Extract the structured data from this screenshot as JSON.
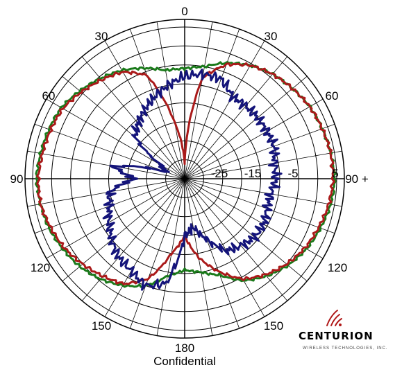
{
  "chart_data": {
    "type": "polar",
    "r_unit": "dB",
    "ring_labels": [
      "-25",
      "-15",
      "-5",
      "5"
    ],
    "angle_labels": {
      "top": "0",
      "upper_left": "30",
      "upper_right": "30",
      "mid_upper_left": "60",
      "mid_upper_right": "60",
      "left": "90",
      "right": "90 +",
      "lower_left_120": "120",
      "lower_right_120": "120",
      "lower_left_150": "150",
      "lower_right_150": "150",
      "bottom": "180"
    },
    "r_range_db": [
      -35,
      7
    ],
    "series": [
      {
        "color": "#1a7a1a",
        "theta_deg": [
          0,
          10,
          20,
          30,
          40,
          50,
          60,
          70,
          80,
          90,
          100,
          110,
          120,
          130,
          140,
          150,
          160,
          170,
          180,
          190,
          200,
          210,
          220,
          230,
          240,
          250,
          260,
          270,
          280,
          290,
          300,
          310,
          320,
          330,
          340,
          350
        ],
        "r_db": [
          -6,
          -5,
          -2.5,
          -0.5,
          1,
          2,
          3,
          3.5,
          4,
          4.5,
          4,
          3,
          2,
          0.5,
          -1.5,
          -4,
          -8,
          -10,
          -11,
          -9,
          -5,
          -2.5,
          -0.5,
          1,
          2,
          3,
          3.5,
          4,
          3.5,
          3,
          2.5,
          1,
          -0.5,
          -2,
          -4,
          -6
        ]
      },
      {
        "color": "#aa1a1a",
        "theta_deg": [
          0,
          10,
          20,
          30,
          40,
          50,
          60,
          70,
          80,
          90,
          100,
          110,
          120,
          130,
          140,
          150,
          160,
          170,
          180,
          190,
          200,
          210,
          220,
          230,
          240,
          250,
          260,
          270,
          280,
          290,
          300,
          310,
          320,
          330,
          340,
          350
        ],
        "r_db": [
          -31,
          -8,
          -3,
          -0.5,
          1,
          2,
          3,
          3.5,
          4,
          4,
          3.5,
          2.5,
          1.5,
          0,
          -2,
          -4.5,
          -9,
          -14,
          -20,
          -15,
          -7,
          -3,
          -1.5,
          0,
          1.5,
          2.5,
          3.5,
          3.5,
          3,
          2.5,
          2,
          0.5,
          -1,
          -2.5,
          -6,
          -20
        ]
      },
      {
        "color": "#14147a",
        "theta_deg": [
          0,
          10,
          20,
          30,
          40,
          50,
          60,
          70,
          80,
          90,
          100,
          110,
          120,
          130,
          140,
          150,
          160,
          170,
          180,
          190,
          200,
          210,
          220,
          230,
          240,
          250,
          260,
          270,
          280,
          290,
          300,
          310,
          320,
          330,
          340,
          350
        ],
        "r_db": [
          -8,
          -7,
          -7,
          -10,
          -10,
          -10,
          -10,
          -10,
          -11,
          -11,
          -12,
          -12,
          -11,
          -11,
          -12,
          -13,
          -18,
          -22,
          -20,
          -7,
          -5,
          -7,
          -8,
          -10,
          -12,
          -14,
          -15,
          -22,
          -16,
          -30,
          -28,
          -18,
          -16,
          -14,
          -12,
          -10
        ]
      }
    ]
  },
  "footer": {
    "text": "Confidential"
  },
  "logo": {
    "name": "CENTURION",
    "tagline": "WIRELESS TECHNOLOGIES, INC."
  },
  "colors": {
    "green": "#1a7a1a",
    "red": "#aa1a1a",
    "blue": "#14147a",
    "grid": "#000000"
  }
}
